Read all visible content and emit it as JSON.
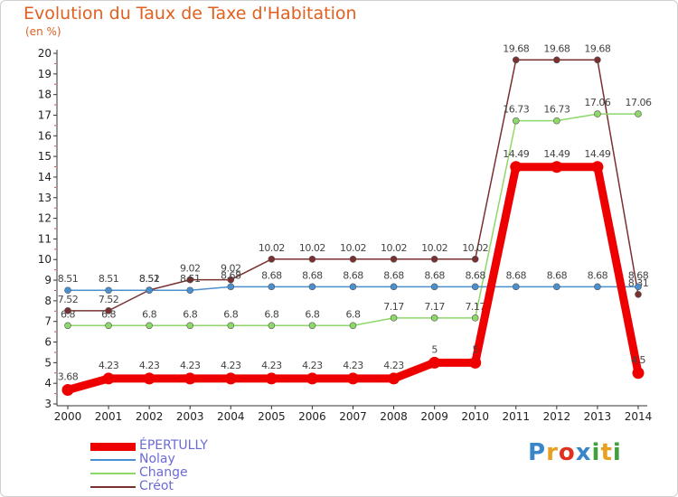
{
  "title": "Evolution du Taux de Taxe d'Habitation",
  "subtitle": "(en %)",
  "logo": {
    "text": "Proxiti",
    "colors": [
      "#3a86c8",
      "#e8a020",
      "#e03020",
      "#3a86c8",
      "#40a040",
      "#e8a020",
      "#40a040"
    ]
  },
  "chart_data": {
    "type": "line",
    "x": [
      2000,
      2001,
      2002,
      2003,
      2004,
      2005,
      2006,
      2007,
      2008,
      2009,
      2010,
      2011,
      2012,
      2013,
      2014
    ],
    "ylim": [
      3,
      20
    ],
    "yticks": [
      3,
      4,
      5,
      6,
      7,
      8,
      9,
      10,
      11,
      12,
      13,
      14,
      15,
      16,
      17,
      18,
      19,
      20
    ],
    "grid": false,
    "legend": "bottom-left",
    "series": [
      {
        "name": "Créot",
        "color": "#7a3030",
        "values": [
          7.52,
          7.52,
          8.52,
          9.02,
          9.02,
          10.02,
          10.02,
          10.02,
          10.02,
          10.02,
          10.02,
          19.68,
          19.68,
          19.68,
          8.31
        ]
      },
      {
        "name": "Change",
        "color": "#8ed86a",
        "values": [
          6.8,
          6.8,
          6.8,
          6.8,
          6.8,
          6.8,
          6.8,
          6.8,
          7.17,
          7.17,
          7.17,
          16.73,
          16.73,
          17.06,
          17.06
        ]
      },
      {
        "name": "Nolay",
        "color": "#4a90d0",
        "values": [
          8.51,
          8.51,
          8.51,
          8.51,
          8.68,
          8.68,
          8.68,
          8.68,
          8.68,
          8.68,
          8.68,
          8.68,
          8.68,
          8.68,
          8.68
        ]
      },
      {
        "name": "ÉPERTULLY",
        "color": "#ee0000",
        "values": [
          3.68,
          4.23,
          4.23,
          4.23,
          4.23,
          4.23,
          4.23,
          4.23,
          4.23,
          5,
          5,
          14.49,
          14.49,
          14.49,
          4.5
        ]
      }
    ],
    "legend_order": [
      "ÉPERTULLY",
      "Nolay",
      "Change",
      "Créot"
    ]
  }
}
